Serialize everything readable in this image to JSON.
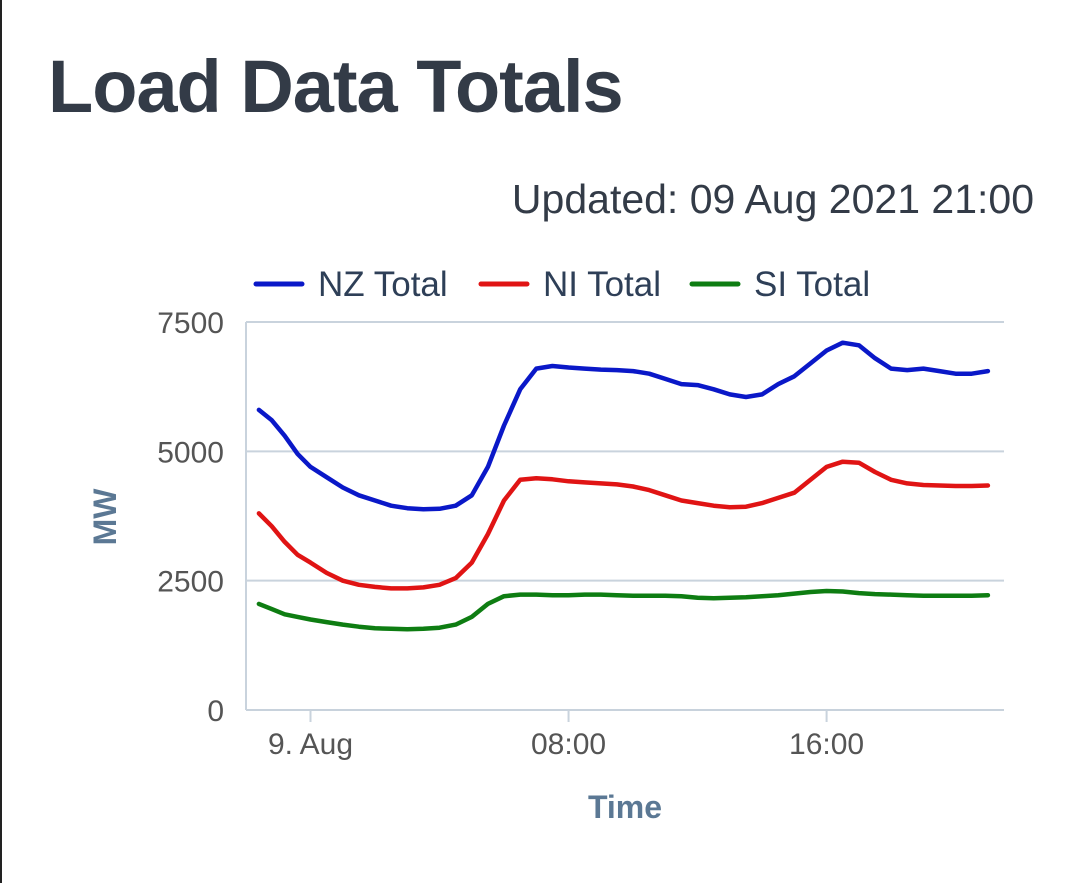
{
  "header": {
    "title": "Load Data Totals",
    "updated": "Updated: 09 Aug 2021 21:00"
  },
  "chart_data": {
    "type": "line",
    "xlabel": "Time",
    "ylabel": "MW",
    "ylim": [
      0,
      7500
    ],
    "yticks": [
      0,
      2500,
      5000,
      7500
    ],
    "xlim": [
      -2,
      21.5
    ],
    "xticks": [
      {
        "x": 0,
        "label": "9. Aug"
      },
      {
        "x": 8,
        "label": "08:00"
      },
      {
        "x": 16,
        "label": "16:00"
      }
    ],
    "grid": true,
    "legend_position": "top",
    "series": [
      {
        "name": "NZ Total",
        "color": "#0a18c8",
        "x": [
          -1.6,
          -1.2,
          -0.8,
          -0.4,
          0,
          0.5,
          1,
          1.5,
          2,
          2.5,
          3,
          3.5,
          4,
          4.5,
          5,
          5.5,
          6,
          6.5,
          7,
          7.5,
          8,
          8.5,
          9,
          9.5,
          10,
          10.5,
          11,
          11.5,
          12,
          12.5,
          13,
          13.5,
          14,
          14.5,
          15,
          15.5,
          16,
          16.5,
          17,
          17.5,
          18,
          18.5,
          19,
          19.5,
          20,
          20.5,
          21
        ],
        "y": [
          5800,
          5600,
          5300,
          4950,
          4700,
          4500,
          4300,
          4150,
          4050,
          3950,
          3900,
          3880,
          3890,
          3950,
          4150,
          4700,
          5500,
          6200,
          6600,
          6650,
          6620,
          6600,
          6580,
          6570,
          6550,
          6500,
          6400,
          6300,
          6280,
          6200,
          6100,
          6050,
          6100,
          6300,
          6450,
          6700,
          6950,
          7100,
          7050,
          6800,
          6600,
          6570,
          6600,
          6550,
          6500,
          6500,
          6550
        ]
      },
      {
        "name": "NI Total",
        "color": "#e01414",
        "x": [
          -1.6,
          -1.2,
          -0.8,
          -0.4,
          0,
          0.5,
          1,
          1.5,
          2,
          2.5,
          3,
          3.5,
          4,
          4.5,
          5,
          5.5,
          6,
          6.5,
          7,
          7.5,
          8,
          8.5,
          9,
          9.5,
          10,
          10.5,
          11,
          11.5,
          12,
          12.5,
          13,
          13.5,
          14,
          14.5,
          15,
          15.5,
          16,
          16.5,
          17,
          17.5,
          18,
          18.5,
          19,
          19.5,
          20,
          20.5,
          21
        ],
        "y": [
          3800,
          3550,
          3250,
          3000,
          2850,
          2650,
          2500,
          2420,
          2380,
          2350,
          2350,
          2370,
          2420,
          2550,
          2850,
          3400,
          4050,
          4450,
          4480,
          4460,
          4420,
          4400,
          4380,
          4360,
          4320,
          4250,
          4150,
          4050,
          4000,
          3950,
          3920,
          3930,
          4000,
          4100,
          4200,
          4450,
          4700,
          4800,
          4780,
          4600,
          4450,
          4380,
          4350,
          4340,
          4330,
          4330,
          4340
        ]
      },
      {
        "name": "SI Total",
        "color": "#0e7d12",
        "x": [
          -1.6,
          -1.2,
          -0.8,
          -0.4,
          0,
          0.5,
          1,
          1.5,
          2,
          2.5,
          3,
          3.5,
          4,
          4.5,
          5,
          5.5,
          6,
          6.5,
          7,
          7.5,
          8,
          8.5,
          9,
          9.5,
          10,
          10.5,
          11,
          11.5,
          12,
          12.5,
          13,
          13.5,
          14,
          14.5,
          15,
          15.5,
          16,
          16.5,
          17,
          17.5,
          18,
          18.5,
          19,
          19.5,
          20,
          20.5,
          21
        ],
        "y": [
          2050,
          1950,
          1850,
          1800,
          1750,
          1700,
          1650,
          1610,
          1580,
          1570,
          1560,
          1570,
          1590,
          1650,
          1800,
          2050,
          2200,
          2230,
          2230,
          2220,
          2220,
          2230,
          2230,
          2220,
          2210,
          2210,
          2210,
          2200,
          2170,
          2160,
          2170,
          2180,
          2200,
          2220,
          2250,
          2280,
          2300,
          2290,
          2260,
          2240,
          2230,
          2220,
          2210,
          2210,
          2210,
          2210,
          2220
        ]
      }
    ]
  }
}
